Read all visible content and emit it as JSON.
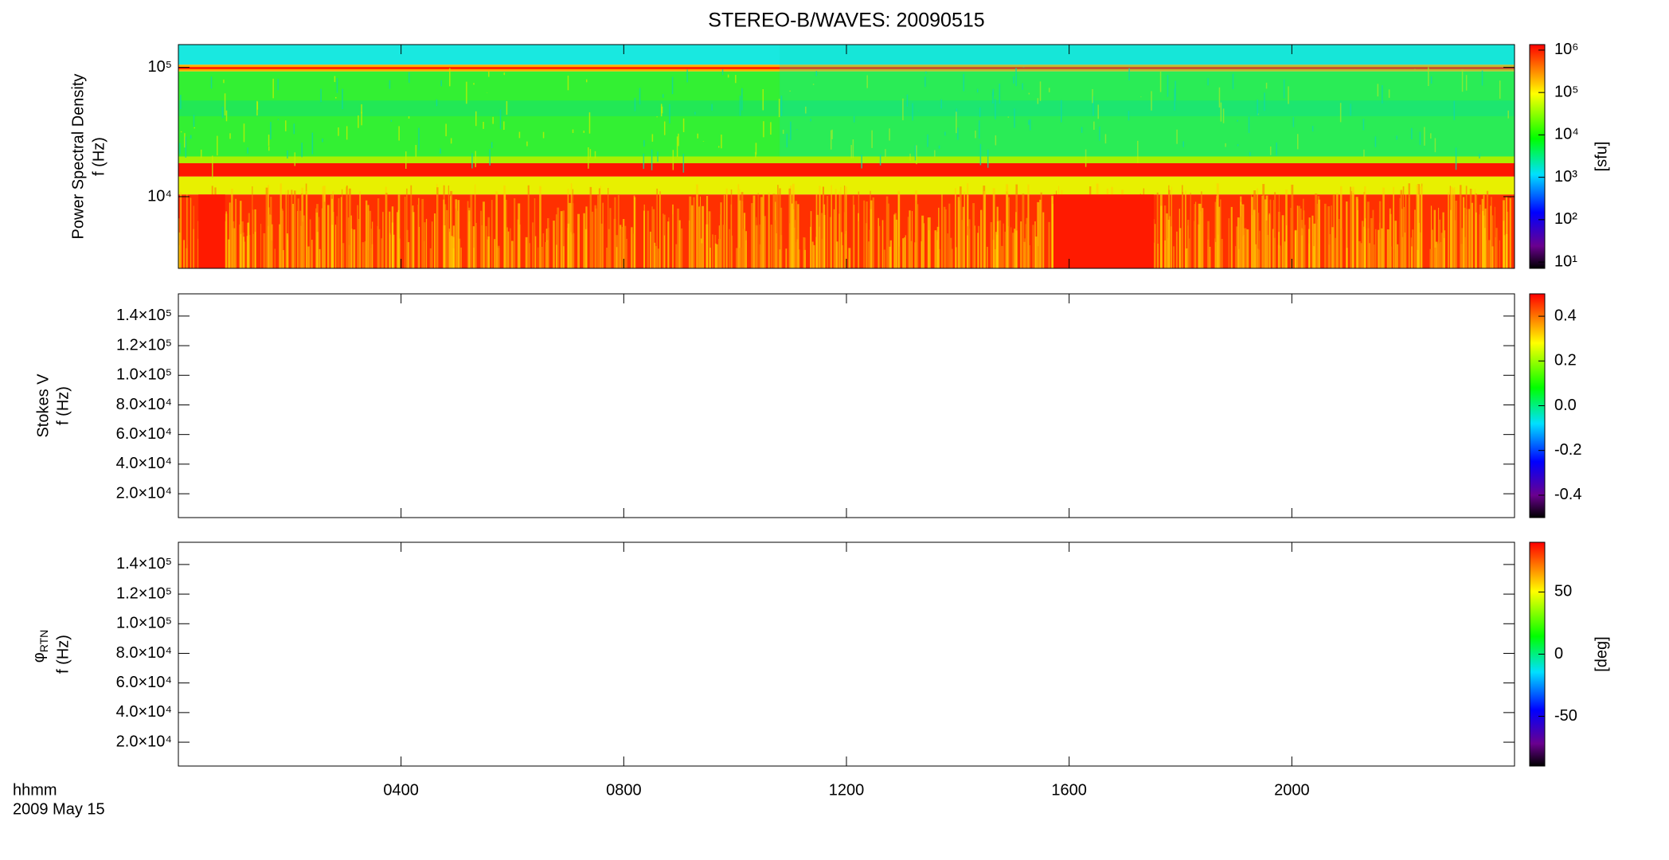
{
  "chart_data": [
    {
      "type": "spectrogram",
      "title": "STEREO-B/WAVES: 20090515",
      "ylabel": [
        "Power Spectral Density",
        "f (Hz)"
      ],
      "ylog": true,
      "ylim": [
        2790,
        150000
      ],
      "yticks": [
        {
          "value": 10000,
          "label": "10⁴"
        },
        {
          "value": 100000,
          "label": "10⁵"
        }
      ],
      "colorbar": {
        "log": true,
        "clim": [
          7.1,
          1350000
        ],
        "label": "[sfu]",
        "cticks": [
          {
            "value": 10,
            "label": "10¹"
          },
          {
            "value": 100,
            "label": "10²"
          },
          {
            "value": 1000,
            "label": "10³"
          },
          {
            "value": 10000,
            "label": "10⁴"
          },
          {
            "value": 100000,
            "label": "10⁵"
          },
          {
            "value": 1000000,
            "label": "10⁶"
          }
        ]
      }
    },
    {
      "type": "spectrogram",
      "ylabel": [
        "Stokes V",
        "f (Hz)"
      ],
      "ylog": false,
      "ylim": [
        3900,
        155000
      ],
      "yticks": [
        {
          "value": 20000,
          "label": "2.0×10⁴"
        },
        {
          "value": 40000,
          "label": "4.0×10⁴"
        },
        {
          "value": 60000,
          "label": "6.0×10⁴"
        },
        {
          "value": 80000,
          "label": "8.0×10⁴"
        },
        {
          "value": 100000,
          "label": "1.0×10⁵"
        },
        {
          "value": 120000,
          "label": "1.2×10⁵"
        },
        {
          "value": 140000,
          "label": "1.4×10⁵"
        }
      ],
      "colorbar": {
        "log": false,
        "clim": [
          -0.5,
          0.5
        ],
        "cticks": [
          -0.4,
          -0.2,
          {
            "value": 0,
            "label": "0.0"
          },
          0.2,
          0.4
        ]
      }
    },
    {
      "type": "spectrogram",
      "ylabel_symbol": "φ",
      "ylabel_subscript": "RTN",
      "ylabel": [
        "f (Hz)"
      ],
      "ylog": false,
      "ylim": [
        3900,
        155000
      ],
      "yticks": [
        {
          "value": 20000,
          "label": "2.0×10⁴"
        },
        {
          "value": 40000,
          "label": "4.0×10⁴"
        },
        {
          "value": 60000,
          "label": "6.0×10⁴"
        },
        {
          "value": 80000,
          "label": "8.0×10⁴"
        },
        {
          "value": 100000,
          "label": "1.0×10⁵"
        },
        {
          "value": 120000,
          "label": "1.2×10⁵"
        },
        {
          "value": 140000,
          "label": "1.4×10⁵"
        }
      ],
      "colorbar": {
        "log": false,
        "clim": [
          -90,
          90
        ],
        "label": "[deg]",
        "cticks": [
          -50,
          0,
          50
        ]
      },
      "xlabel": [
        "hhmm",
        "2009 May 15"
      ],
      "xlim": [
        0,
        24
      ],
      "xticks": [
        {
          "value": 4,
          "label": "0400"
        },
        {
          "value": 8,
          "label": "0800"
        },
        {
          "value": 12,
          "label": "1200"
        },
        {
          "value": 16,
          "label": "1600"
        },
        {
          "value": 20,
          "label": "2000"
        }
      ]
    }
  ]
}
